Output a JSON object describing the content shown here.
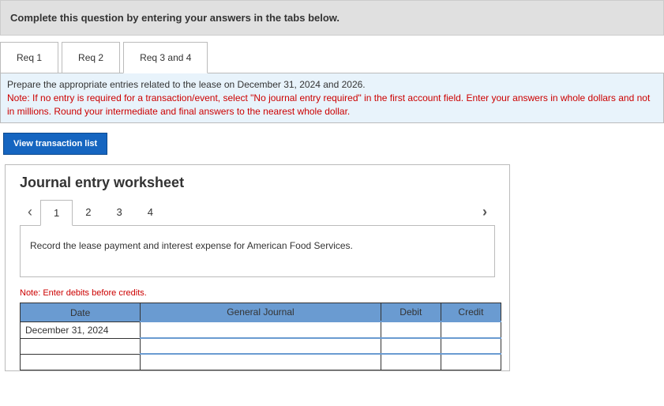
{
  "instruction": "Complete this question by entering your answers in the tabs below.",
  "req_tabs": [
    {
      "label": "Req 1",
      "active": false
    },
    {
      "label": "Req 2",
      "active": false
    },
    {
      "label": "Req 3 and 4",
      "active": true
    }
  ],
  "req_content": {
    "main": "Prepare the appropriate entries related to the lease on December 31, 2024 and 2026.",
    "note": "Note: If no entry is required for a transaction/event, select \"No journal entry required\" in the first account field. Enter your answers in whole dollars and not in millions. Round your intermediate and final answers to the nearest whole dollar."
  },
  "view_txn_button": "View transaction list",
  "worksheet": {
    "title": "Journal entry worksheet",
    "steps": [
      "1",
      "2",
      "3",
      "4"
    ],
    "active_step": 0,
    "prompt": "Record the lease payment and interest expense for American Food Services.",
    "note": "Note: Enter debits before credits.",
    "table": {
      "headers": {
        "date": "Date",
        "journal": "General Journal",
        "debit": "Debit",
        "credit": "Credit"
      },
      "rows": [
        {
          "date": "December 31, 2024",
          "journal": "",
          "debit": "",
          "credit": ""
        },
        {
          "date": "",
          "journal": "",
          "debit": "",
          "credit": ""
        },
        {
          "date": "",
          "journal": "",
          "debit": "",
          "credit": ""
        }
      ]
    },
    "colors": {
      "header_bg": "#6a9bd1",
      "note_color": "#c00",
      "button_bg": "#1565c0"
    }
  }
}
